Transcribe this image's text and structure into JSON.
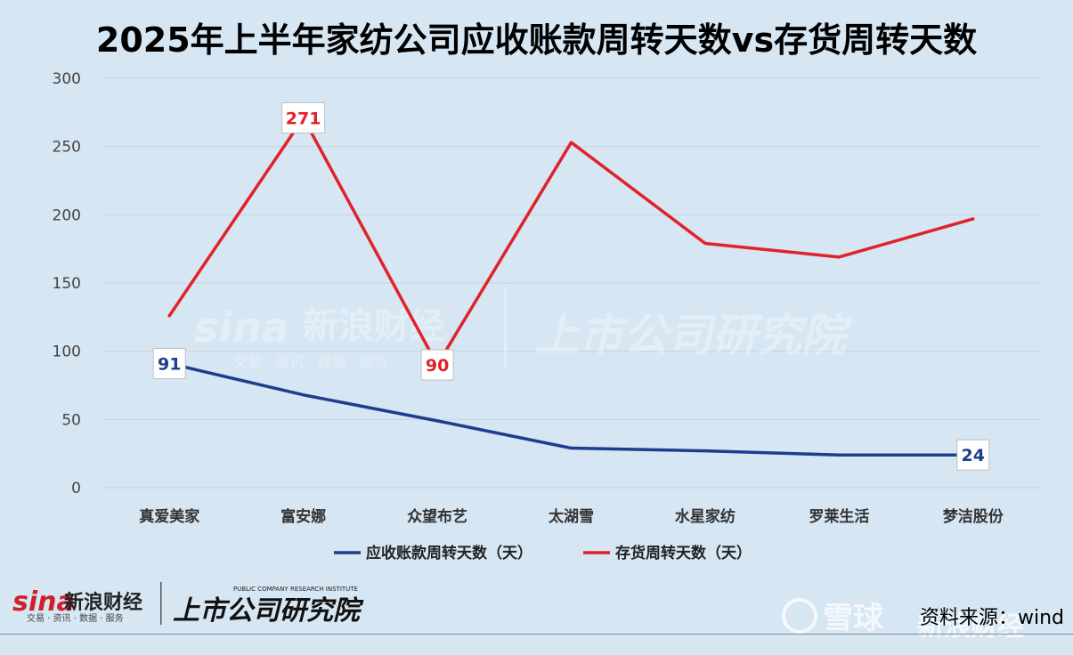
{
  "title": "2025年上半年家纺公司应收账款周转天数vs存货周转天数",
  "source": "资料来源：wind",
  "watermark": {
    "brand": "sina",
    "brand_cn": "新浪财经",
    "brand_sub": "交易 · 资讯 · 数据 · 服务",
    "institute": "上市公司研究院",
    "institute_en": "PUBLIC COMPANY RESEARCH INSTITUTE",
    "xueqiu": "雪球",
    "xueqiu_brand": "新浪财经"
  },
  "colors": {
    "background": "#d6e6f3",
    "receivable": "#1f3d8c",
    "inventory": "#e0222b",
    "grid": "#c4d3df"
  },
  "chart_data": {
    "type": "line",
    "title": "2025年上半年家纺公司应收账款周转天数vs存货周转天数",
    "categories": [
      "真爱美家",
      "富安娜",
      "众望布艺",
      "太湖雪",
      "水星家纺",
      "罗莱生活",
      "梦洁股份"
    ],
    "ylim": [
      0,
      300
    ],
    "yticks": [
      0,
      50,
      100,
      150,
      200,
      250,
      300
    ],
    "grid": true,
    "legend": "bottom",
    "series": [
      {
        "name": "应收账款周转天数（天）",
        "color": "#1f3d8c",
        "values": [
          91,
          68,
          49,
          29,
          27,
          24,
          24
        ]
      },
      {
        "name": "存货周转天数（天）",
        "color": "#e0222b",
        "values": [
          126,
          271,
          90,
          253,
          179,
          169,
          197
        ]
      }
    ],
    "data_labels": [
      {
        "series": 0,
        "index": 0,
        "text": "91"
      },
      {
        "series": 0,
        "index": 6,
        "text": "24"
      },
      {
        "series": 1,
        "index": 1,
        "text": "271"
      },
      {
        "series": 1,
        "index": 2,
        "text": "90"
      }
    ]
  }
}
